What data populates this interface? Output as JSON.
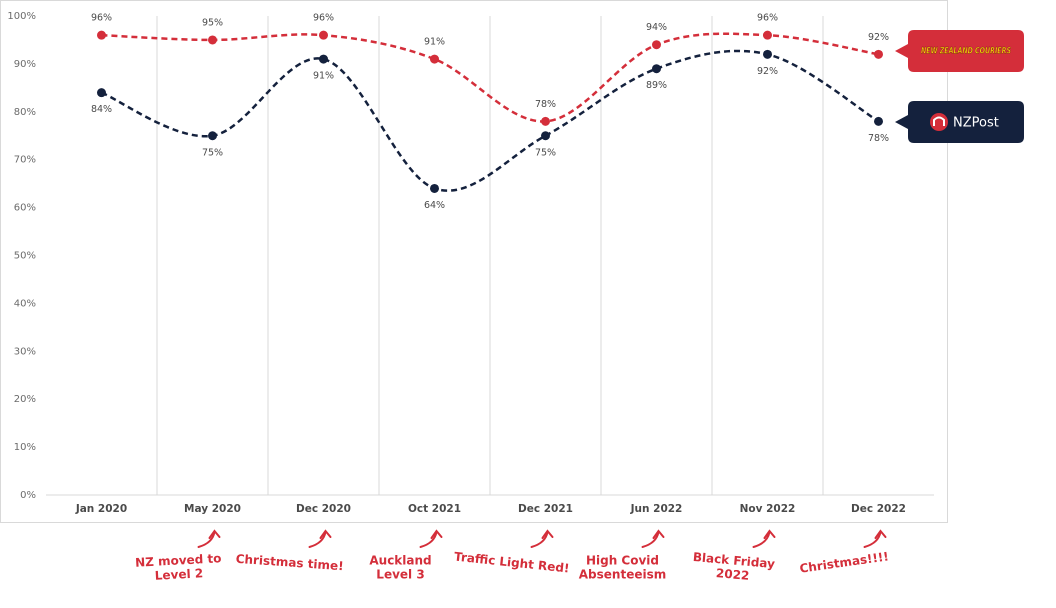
{
  "chart_data": {
    "type": "line",
    "categories": [
      "Jan 2020",
      "May 2020",
      "Dec 2020",
      "Oct 2021",
      "Dec 2021",
      "Jun 2022",
      "Nov 2022",
      "Dec 2022"
    ],
    "series": [
      {
        "name": "NEW ZEALAND COURIERS",
        "color": "#d42e3a",
        "values": [
          96,
          95,
          96,
          91,
          78,
          94,
          96,
          92
        ],
        "value_labels": [
          "96%",
          "95%",
          "96%",
          "91%",
          "78%",
          "94%",
          "96%",
          "92%"
        ]
      },
      {
        "name": "NZPost",
        "color": "#14213d",
        "values": [
          84,
          75,
          91,
          64,
          75,
          89,
          92,
          78
        ],
        "value_labels": [
          "84%",
          "75%",
          "91%",
          "64%",
          "75%",
          "89%",
          "92%",
          "78%"
        ]
      }
    ],
    "ylim": [
      0,
      100
    ],
    "yticks": [
      {
        "value": 0,
        "label": "0%"
      },
      {
        "value": 10,
        "label": "10%"
      },
      {
        "value": 20,
        "label": "20%"
      },
      {
        "value": 30,
        "label": "30%"
      },
      {
        "value": 40,
        "label": "40%"
      },
      {
        "value": 50,
        "label": "50%"
      },
      {
        "value": 60,
        "label": "60%"
      },
      {
        "value": 70,
        "label": "70%"
      },
      {
        "value": 80,
        "label": "80%"
      },
      {
        "value": 90,
        "label": "90%"
      },
      {
        "value": 100,
        "label": "100%"
      }
    ],
    "annotations": [
      null,
      [
        "NZ moved to",
        "Level 2"
      ],
      [
        "Christmas time!"
      ],
      [
        "Auckland",
        "Level 3"
      ],
      [
        "Traffic Light Red!"
      ],
      [
        "High Covid",
        "Absenteeism"
      ],
      [
        "Black Friday",
        "2022"
      ],
      [
        "Christmas!!!!"
      ]
    ],
    "annotation_color": "#d42e3a",
    "legend": "right"
  }
}
